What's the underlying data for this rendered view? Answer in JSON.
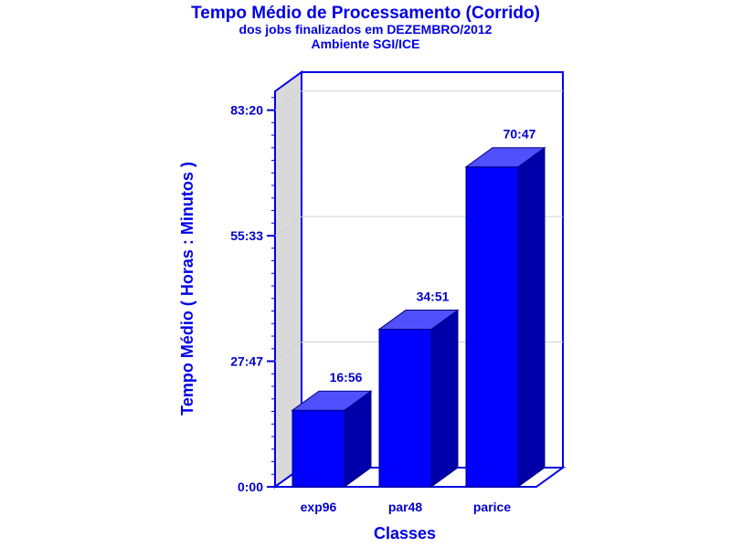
{
  "chart_data": {
    "type": "bar",
    "title": "Tempo Médio de Processamento (Corrido)",
    "subtitle_1": "dos jobs finalizados em DEZEMBRO/2012",
    "subtitle_2": "Ambiente SGI/ICE",
    "xlabel": "Classes",
    "ylabel": "Tempo Médio ( Horas : Minutos )",
    "categories": [
      "exp96",
      "par48",
      "parice"
    ],
    "values_minutes": [
      1016,
      2091,
      4247
    ],
    "value_labels": [
      "16:56",
      "34:51",
      "70:47"
    ],
    "y_ticks_minutes": [
      0,
      1667,
      3333,
      5000
    ],
    "y_tick_labels": [
      "0:00",
      "27:47",
      "55:33",
      "83:20"
    ],
    "ylim_minutes": [
      0,
      5250
    ],
    "grid": true,
    "three_d": true,
    "colors": {
      "bar_front": "#0000ff",
      "bar_top": "#5050ff",
      "bar_side": "#0000aa",
      "frame": "#0000e6",
      "back_wall": "#d9d9d9",
      "text": "#0000e6"
    }
  }
}
